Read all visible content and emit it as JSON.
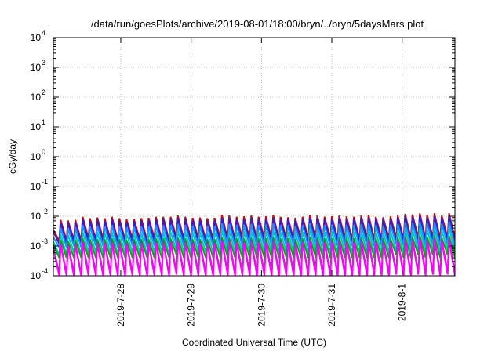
{
  "chart_data": {
    "type": "line",
    "title": "/data/run/goesPlots/archive/2019-08-01/18:00/bryn/../bryn/5daysMars.plot",
    "xlabel": "Coordinated Universal Time (UTC)",
    "ylabel": "cGy/day",
    "xlim": [
      "2019-07-27T01:00",
      "2019-08-01T18:00"
    ],
    "ylim": [
      0.0001,
      10000
    ],
    "yscale": "log",
    "grid": true,
    "x_ticks": [
      {
        "date": "2019-07-28T00:00",
        "label": "2019-7-28"
      },
      {
        "date": "2019-07-29T00:00",
        "label": "2019-7-29"
      },
      {
        "date": "2019-07-30T00:00",
        "label": "2019-7-30"
      },
      {
        "date": "2019-07-31T00:00",
        "label": "2019-7-31"
      },
      {
        "date": "2019-08-01T00:00",
        "label": "2019-8-1"
      }
    ],
    "y_ticks": [
      {
        "value": 0.0001,
        "base": "10",
        "exp": "-4"
      },
      {
        "value": 0.001,
        "base": "10",
        "exp": "-3"
      },
      {
        "value": 0.01,
        "base": "10",
        "exp": "-2"
      },
      {
        "value": 0.1,
        "base": "10",
        "exp": "-1"
      },
      {
        "value": 1,
        "base": "10",
        "exp": "0"
      },
      {
        "value": 10,
        "base": "10",
        "exp": "1"
      },
      {
        "value": 100,
        "base": "10",
        "exp": "2"
      },
      {
        "value": 1000,
        "base": "10",
        "exp": "3"
      },
      {
        "value": 10000,
        "base": "10",
        "exp": "4"
      }
    ],
    "series": [
      {
        "color": "#e00000",
        "cycle_hours": 2.5,
        "start": "2019-07-27T01:00",
        "peak_values": [
          0.0035,
          0.0075,
          0.0072,
          0.0075,
          0.0095,
          0.0085,
          0.009,
          0.0085,
          0.0095,
          0.0085,
          0.0078,
          0.0082,
          0.0086,
          0.0088,
          0.0095,
          0.0095,
          0.0095,
          0.0105,
          0.0095,
          0.0088,
          0.009,
          0.0086,
          0.0088,
          0.011,
          0.0105,
          0.0095,
          0.0098,
          0.0105,
          0.0095,
          0.0098,
          0.011,
          0.0095,
          0.0092,
          0.0088,
          0.0095,
          0.011,
          0.0105,
          0.0095,
          0.0098,
          0.0105,
          0.0098,
          0.0095,
          0.0105,
          0.011,
          0.0095,
          0.0092,
          0.0098,
          0.0105,
          0.012,
          0.0115,
          0.0125,
          0.011,
          0.0125,
          0.0105,
          0.0125,
          0.0125
        ],
        "trough_values": [
          0.0015,
          0.0015,
          0.0016,
          0.0015,
          0.0018,
          0.0016,
          0.0017,
          0.0016,
          0.0015,
          0.0016,
          0.0017,
          0.0016,
          0.0015,
          0.0018,
          0.0016,
          0.0015,
          0.0019,
          0.0017,
          0.0016,
          0.0017,
          0.0016,
          0.0017,
          0.0018,
          0.0016,
          0.0017,
          0.0018,
          0.0017,
          0.0016,
          0.0018,
          0.0017,
          0.0016,
          0.0017,
          0.0016,
          0.0017,
          0.0018,
          0.0016,
          0.0017,
          0.0018,
          0.0017,
          0.0018,
          0.0016,
          0.0017,
          0.0018,
          0.0016,
          0.0017,
          0.0018,
          0.0019,
          0.0017,
          0.0018,
          0.0019,
          0.0018,
          0.0019,
          0.0018,
          0.0019,
          0.0018,
          0.0017
        ]
      },
      {
        "color": "#3020d0",
        "cycle_hours": 2.5,
        "start": "2019-07-27T01:00",
        "peak_values": [
          0.003,
          0.0062,
          0.006,
          0.0065,
          0.008,
          0.0072,
          0.0075,
          0.0072,
          0.008,
          0.0072,
          0.0066,
          0.007,
          0.0073,
          0.0075,
          0.008,
          0.008,
          0.008,
          0.0088,
          0.008,
          0.0075,
          0.0076,
          0.0073,
          0.0075,
          0.0092,
          0.0088,
          0.008,
          0.0082,
          0.0088,
          0.008,
          0.0082,
          0.0092,
          0.008,
          0.0078,
          0.0075,
          0.008,
          0.0092,
          0.0088,
          0.008,
          0.0082,
          0.0088,
          0.0082,
          0.008,
          0.0088,
          0.0092,
          0.008,
          0.0078,
          0.0082,
          0.0088,
          0.01,
          0.0096,
          0.0104,
          0.0092,
          0.0104,
          0.0088,
          0.0104,
          0.0104
        ],
        "trough_values": [
          0.0012,
          0.0012,
          0.0013,
          0.0012,
          0.0014,
          0.0013,
          0.0014,
          0.0013,
          0.0012,
          0.0013,
          0.0014,
          0.0013,
          0.0012,
          0.0014,
          0.0013,
          0.0012,
          0.0015,
          0.0014,
          0.0013,
          0.0014,
          0.0013,
          0.0014,
          0.0014,
          0.0013,
          0.0014,
          0.0014,
          0.0014,
          0.0013,
          0.0014,
          0.0014,
          0.0013,
          0.0014,
          0.0013,
          0.0014,
          0.0014,
          0.0013,
          0.0014,
          0.0014,
          0.0014,
          0.0014,
          0.0013,
          0.0014,
          0.0014,
          0.0013,
          0.0014,
          0.0014,
          0.0015,
          0.0014,
          0.0014,
          0.0015,
          0.0014,
          0.0015,
          0.0014,
          0.0015,
          0.0014,
          0.0014
        ]
      },
      {
        "color": "#1890ff",
        "cycle_hours": 2.5,
        "start": "2019-07-27T01:00",
        "peak_values": [
          0.002,
          0.004,
          0.0038,
          0.004,
          0.005,
          0.0045,
          0.0048,
          0.0045,
          0.005,
          0.0045,
          0.0042,
          0.0044,
          0.0046,
          0.0047,
          0.005,
          0.005,
          0.005,
          0.0055,
          0.005,
          0.0047,
          0.0048,
          0.0046,
          0.0047,
          0.0058,
          0.0055,
          0.005,
          0.0052,
          0.0055,
          0.005,
          0.0052,
          0.0058,
          0.005,
          0.0049,
          0.0047,
          0.005,
          0.0058,
          0.0055,
          0.005,
          0.0052,
          0.0055,
          0.0052,
          0.005,
          0.0055,
          0.0058,
          0.005,
          0.0049,
          0.0052,
          0.0055,
          0.0063,
          0.006,
          0.0066,
          0.0058,
          0.0066,
          0.0055,
          0.0066,
          0.0066
        ],
        "trough_values": [
          0.0009,
          0.0009,
          0.001,
          0.0009,
          0.001,
          0.001,
          0.001,
          0.001,
          0.0009,
          0.001,
          0.001,
          0.001,
          0.0009,
          0.001,
          0.001,
          0.0009,
          0.0011,
          0.001,
          0.001,
          0.001,
          0.001,
          0.001,
          0.001,
          0.001,
          0.001,
          0.001,
          0.001,
          0.001,
          0.001,
          0.001,
          0.001,
          0.001,
          0.001,
          0.001,
          0.001,
          0.001,
          0.001,
          0.001,
          0.001,
          0.001,
          0.001,
          0.001,
          0.001,
          0.001,
          0.001,
          0.001,
          0.0011,
          0.001,
          0.001,
          0.0011,
          0.001,
          0.0011,
          0.001,
          0.0011,
          0.001,
          0.001
        ]
      },
      {
        "color": "#00c8c8",
        "cycle_hours": 2.5,
        "start": "2019-07-27T01:00",
        "peak_values": [
          0.0014,
          0.0025,
          0.0024,
          0.0025,
          0.003,
          0.0028,
          0.0029,
          0.0028,
          0.003,
          0.0028,
          0.0026,
          0.0027,
          0.0028,
          0.0029,
          0.003,
          0.003,
          0.003,
          0.0033,
          0.003,
          0.0029,
          0.0029,
          0.0028,
          0.0029,
          0.0035,
          0.0033,
          0.003,
          0.0031,
          0.0033,
          0.003,
          0.0031,
          0.0035,
          0.003,
          0.003,
          0.0029,
          0.003,
          0.0035,
          0.0033,
          0.003,
          0.0031,
          0.0033,
          0.0031,
          0.003,
          0.0033,
          0.0035,
          0.003,
          0.003,
          0.0031,
          0.0033,
          0.0038,
          0.0036,
          0.004,
          0.0035,
          0.004,
          0.0033,
          0.004,
          0.004
        ],
        "trough_values": [
          0.0005,
          0.0005,
          0.0006,
          0.0005,
          0.0006,
          0.0006,
          0.0006,
          0.0006,
          0.0005,
          0.0006,
          0.0006,
          0.0006,
          0.0005,
          0.0006,
          0.0006,
          0.0005,
          0.0007,
          0.0006,
          0.0006,
          0.0006,
          0.0006,
          0.0006,
          0.0006,
          0.0006,
          0.0006,
          0.0006,
          0.0006,
          0.0006,
          0.0006,
          0.0006,
          0.0006,
          0.0006,
          0.0006,
          0.0006,
          0.0006,
          0.0006,
          0.0006,
          0.0006,
          0.0006,
          0.0006,
          0.0006,
          0.0006,
          0.0006,
          0.0006,
          0.0006,
          0.0006,
          0.0007,
          0.0006,
          0.0006,
          0.0007,
          0.0006,
          0.0007,
          0.0006,
          0.0007,
          0.0006,
          0.0006
        ]
      },
      {
        "color": "#00b000",
        "cycle_hours": 2.5,
        "start": "2019-07-27T01:00",
        "peak_values": [
          0.0011,
          0.0016,
          0.0015,
          0.0016,
          0.0018,
          0.0017,
          0.0017,
          0.0017,
          0.0018,
          0.0017,
          0.0016,
          0.0017,
          0.0017,
          0.0017,
          0.0018,
          0.0018,
          0.0018,
          0.0019,
          0.0018,
          0.0017,
          0.0017,
          0.0017,
          0.0017,
          0.002,
          0.0019,
          0.0018,
          0.0018,
          0.0019,
          0.0018,
          0.0018,
          0.002,
          0.0018,
          0.0018,
          0.0017,
          0.0018,
          0.002,
          0.0019,
          0.0018,
          0.0018,
          0.0019,
          0.0018,
          0.0018,
          0.0019,
          0.002,
          0.0018,
          0.0018,
          0.0018,
          0.0019,
          0.0021,
          0.002,
          0.0022,
          0.002,
          0.0022,
          0.0019,
          0.0022,
          0.0022
        ],
        "trough_values": [
          0.0004,
          0.0004,
          0.0004,
          0.0004,
          0.0004,
          0.0004,
          0.0004,
          0.0004,
          0.0004,
          0.0004,
          0.0004,
          0.0004,
          0.0004,
          0.0004,
          0.0004,
          0.0004,
          0.0005,
          0.0004,
          0.0004,
          0.0004,
          0.0004,
          0.0004,
          0.0004,
          0.0004,
          0.0004,
          0.0004,
          0.0004,
          0.0004,
          0.0004,
          0.0004,
          0.0004,
          0.0004,
          0.0004,
          0.0004,
          0.0004,
          0.0004,
          0.0004,
          0.0004,
          0.0004,
          0.0004,
          0.0004,
          0.0004,
          0.0004,
          0.0004,
          0.0004,
          0.0004,
          0.0005,
          0.0004,
          0.0004,
          0.0005,
          0.0004,
          0.0005,
          0.0004,
          0.0005,
          0.0004,
          0.0004
        ]
      },
      {
        "color": "#9030c0",
        "cycle_hours": 2.5,
        "start": "2019-07-27T01:00",
        "peak_values": [
          0.0009,
          0.0013,
          0.0012,
          0.0013,
          0.0015,
          0.0014,
          0.0014,
          0.0014,
          0.0015,
          0.0014,
          0.0013,
          0.0014,
          0.0014,
          0.0014,
          0.0015,
          0.0015,
          0.0015,
          0.0016,
          0.0015,
          0.0014,
          0.0014,
          0.0014,
          0.0014,
          0.0017,
          0.0016,
          0.0015,
          0.0015,
          0.0016,
          0.0015,
          0.0015,
          0.0017,
          0.0015,
          0.0015,
          0.0014,
          0.0015,
          0.0017,
          0.0016,
          0.0015,
          0.0015,
          0.0016,
          0.0015,
          0.0015,
          0.0016,
          0.0017,
          0.0015,
          0.0015,
          0.0015,
          0.0016,
          0.0018,
          0.0017,
          0.0019,
          0.0017,
          0.0019,
          0.0016,
          0.0019,
          0.0019
        ],
        "trough_values": [
          0.00012,
          0.00011,
          0.00012,
          0.00011,
          0.00012,
          0.00012,
          0.00012,
          0.00012,
          0.00011,
          0.00012,
          0.00012,
          0.00012,
          0.00011,
          0.00012,
          0.00012,
          0.00011,
          0.00013,
          0.00012,
          0.00012,
          0.00012,
          0.00012,
          0.00012,
          0.00012,
          0.00012,
          0.00012,
          0.00012,
          0.00012,
          0.00012,
          0.00012,
          0.00012,
          0.00012,
          0.00012,
          0.00012,
          0.00012,
          0.00012,
          0.00012,
          0.00012,
          0.00012,
          0.00012,
          0.00012,
          0.00012,
          0.00012,
          0.00012,
          0.00012,
          0.00012,
          0.00012,
          0.00013,
          0.00012,
          0.00012,
          0.00013,
          0.00012,
          0.00013,
          0.00012,
          0.00013,
          0.00012,
          0.00012
        ]
      },
      {
        "color": "#ff00ff",
        "cycle_hours": 2.5,
        "start": "2019-07-27T01:00",
        "peak_values": [
          0.0008,
          0.0011,
          0.001,
          0.0011,
          0.0013,
          0.0012,
          0.0012,
          0.0012,
          0.0013,
          0.0012,
          0.0011,
          0.0012,
          0.0012,
          0.0012,
          0.0013,
          0.0013,
          0.0013,
          0.0014,
          0.0013,
          0.0012,
          0.0012,
          0.0012,
          0.0012,
          0.0015,
          0.0014,
          0.0013,
          0.0013,
          0.0014,
          0.0013,
          0.0013,
          0.0015,
          0.0013,
          0.0013,
          0.0012,
          0.0013,
          0.0015,
          0.0014,
          0.0013,
          0.0013,
          0.0014,
          0.0013,
          0.0013,
          0.0014,
          0.0015,
          0.0013,
          0.0013,
          0.0013,
          0.0014,
          0.0016,
          0.0015,
          0.0017,
          0.0015,
          0.0017,
          0.0014,
          0.0017,
          0.0017
        ],
        "trough_values": [
          0.0001,
          0.0001,
          0.0001,
          0.0001,
          0.0001,
          0.0001,
          0.0001,
          0.0001,
          0.0001,
          0.0001,
          0.0001,
          0.0001,
          0.0001,
          0.0001,
          0.0001,
          0.0001,
          0.00011,
          0.0001,
          0.0001,
          0.0001,
          0.0001,
          0.0001,
          0.0001,
          0.0001,
          0.0001,
          0.0001,
          0.0001,
          0.0001,
          0.0001,
          0.0001,
          0.0001,
          0.0001,
          0.0001,
          0.0001,
          0.0001,
          0.0001,
          0.0001,
          0.0001,
          0.0001,
          0.0001,
          0.0001,
          0.0001,
          0.0001,
          0.0001,
          0.0001,
          0.0001,
          0.00011,
          0.0001,
          0.0001,
          0.00011,
          0.0001,
          0.00011,
          0.0001,
          0.00011,
          0.0001,
          0.0001
        ]
      }
    ]
  }
}
